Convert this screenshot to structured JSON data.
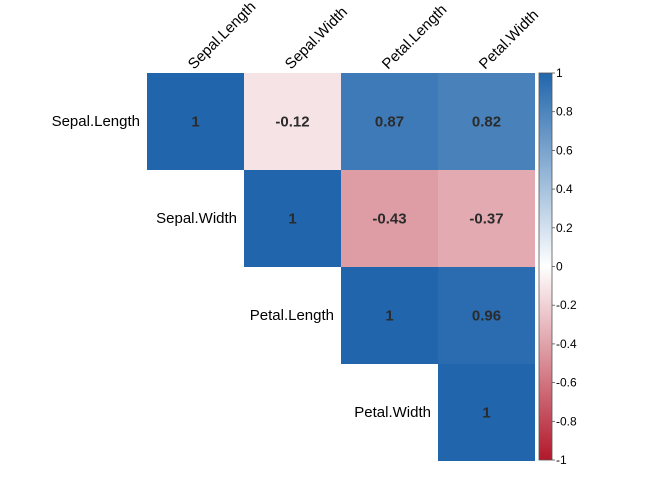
{
  "chart_data": {
    "type": "heatmap",
    "variables": [
      "Sepal.Length",
      "Sepal.Width",
      "Petal.Length",
      "Petal.Width"
    ],
    "matrix": [
      [
        1,
        -0.12,
        0.87,
        0.82
      ],
      [
        null,
        1,
        -0.43,
        -0.37
      ],
      [
        null,
        null,
        1,
        0.96
      ],
      [
        null,
        null,
        null,
        1
      ]
    ],
    "value_labels": [
      [
        "1",
        "-0.12",
        "0.87",
        "0.82"
      ],
      [
        "",
        "1",
        "-0.43",
        "-0.37"
      ],
      [
        "",
        "",
        "1",
        "0.96"
      ],
      [
        "",
        "",
        "",
        "1"
      ]
    ],
    "colorbar": {
      "range": [
        -1,
        1
      ],
      "ticks": [
        1,
        0.8,
        0.6,
        0.4,
        0.2,
        0,
        -0.2,
        -0.4,
        -0.6,
        -0.8,
        -1
      ],
      "tick_labels": [
        "1",
        "0.8",
        "0.6",
        "0.4",
        "0.2",
        "0",
        "-0.2",
        "-0.4",
        "-0.6",
        "-0.8",
        "-1"
      ],
      "placement": "right"
    },
    "colors": {
      "low": "#b2182b",
      "mid": "#ffffff",
      "high": "#2166ac"
    },
    "layout": "upper-triangle"
  }
}
